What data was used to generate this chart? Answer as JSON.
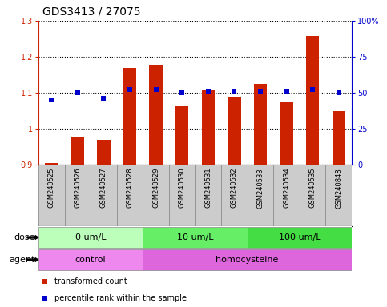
{
  "title": "GDS3413 / 27075",
  "samples": [
    "GSM240525",
    "GSM240526",
    "GSM240527",
    "GSM240528",
    "GSM240529",
    "GSM240530",
    "GSM240531",
    "GSM240532",
    "GSM240533",
    "GSM240534",
    "GSM240535",
    "GSM240848"
  ],
  "transformed_count": [
    0.905,
    0.977,
    0.97,
    1.17,
    1.178,
    1.065,
    1.107,
    1.088,
    1.125,
    1.075,
    1.258,
    1.048
  ],
  "percentile_rank": [
    45,
    50,
    46,
    52,
    52,
    50,
    51,
    51,
    51,
    51,
    52,
    50
  ],
  "ylim_left": [
    0.9,
    1.3
  ],
  "ylim_right": [
    0,
    100
  ],
  "yticks_left": [
    0.9,
    1.0,
    1.1,
    1.2,
    1.3
  ],
  "yticks_right": [
    0,
    25,
    50,
    75,
    100
  ],
  "ytick_labels_left": [
    "0.9",
    "1",
    "1.1",
    "1.2",
    "1.3"
  ],
  "ytick_labels_right": [
    "0",
    "25",
    "50",
    "75",
    "100%"
  ],
  "bar_color": "#CC2200",
  "point_color": "#0000CC",
  "dose_groups": [
    {
      "label": "0 um/L",
      "start": 0,
      "end": 3,
      "color": "#BBFFBB"
    },
    {
      "label": "10 um/L",
      "start": 4,
      "end": 7,
      "color": "#66EE66"
    },
    {
      "label": "100 um/L",
      "start": 8,
      "end": 11,
      "color": "#44DD44"
    }
  ],
  "agent_groups": [
    {
      "label": "control",
      "start": 0,
      "end": 3,
      "color": "#EE88EE"
    },
    {
      "label": "homocysteine",
      "start": 4,
      "end": 11,
      "color": "#DD66DD"
    }
  ],
  "dose_label": "dose",
  "agent_label": "agent",
  "legend_bar_label": "transformed count",
  "legend_point_label": "percentile rank within the sample",
  "bg_color": "#FFFFFF",
  "sample_bg_color": "#CCCCCC",
  "bar_width": 0.5,
  "title_fontsize": 10,
  "tick_fontsize": 7,
  "label_fontsize": 8,
  "sample_fontsize": 6
}
